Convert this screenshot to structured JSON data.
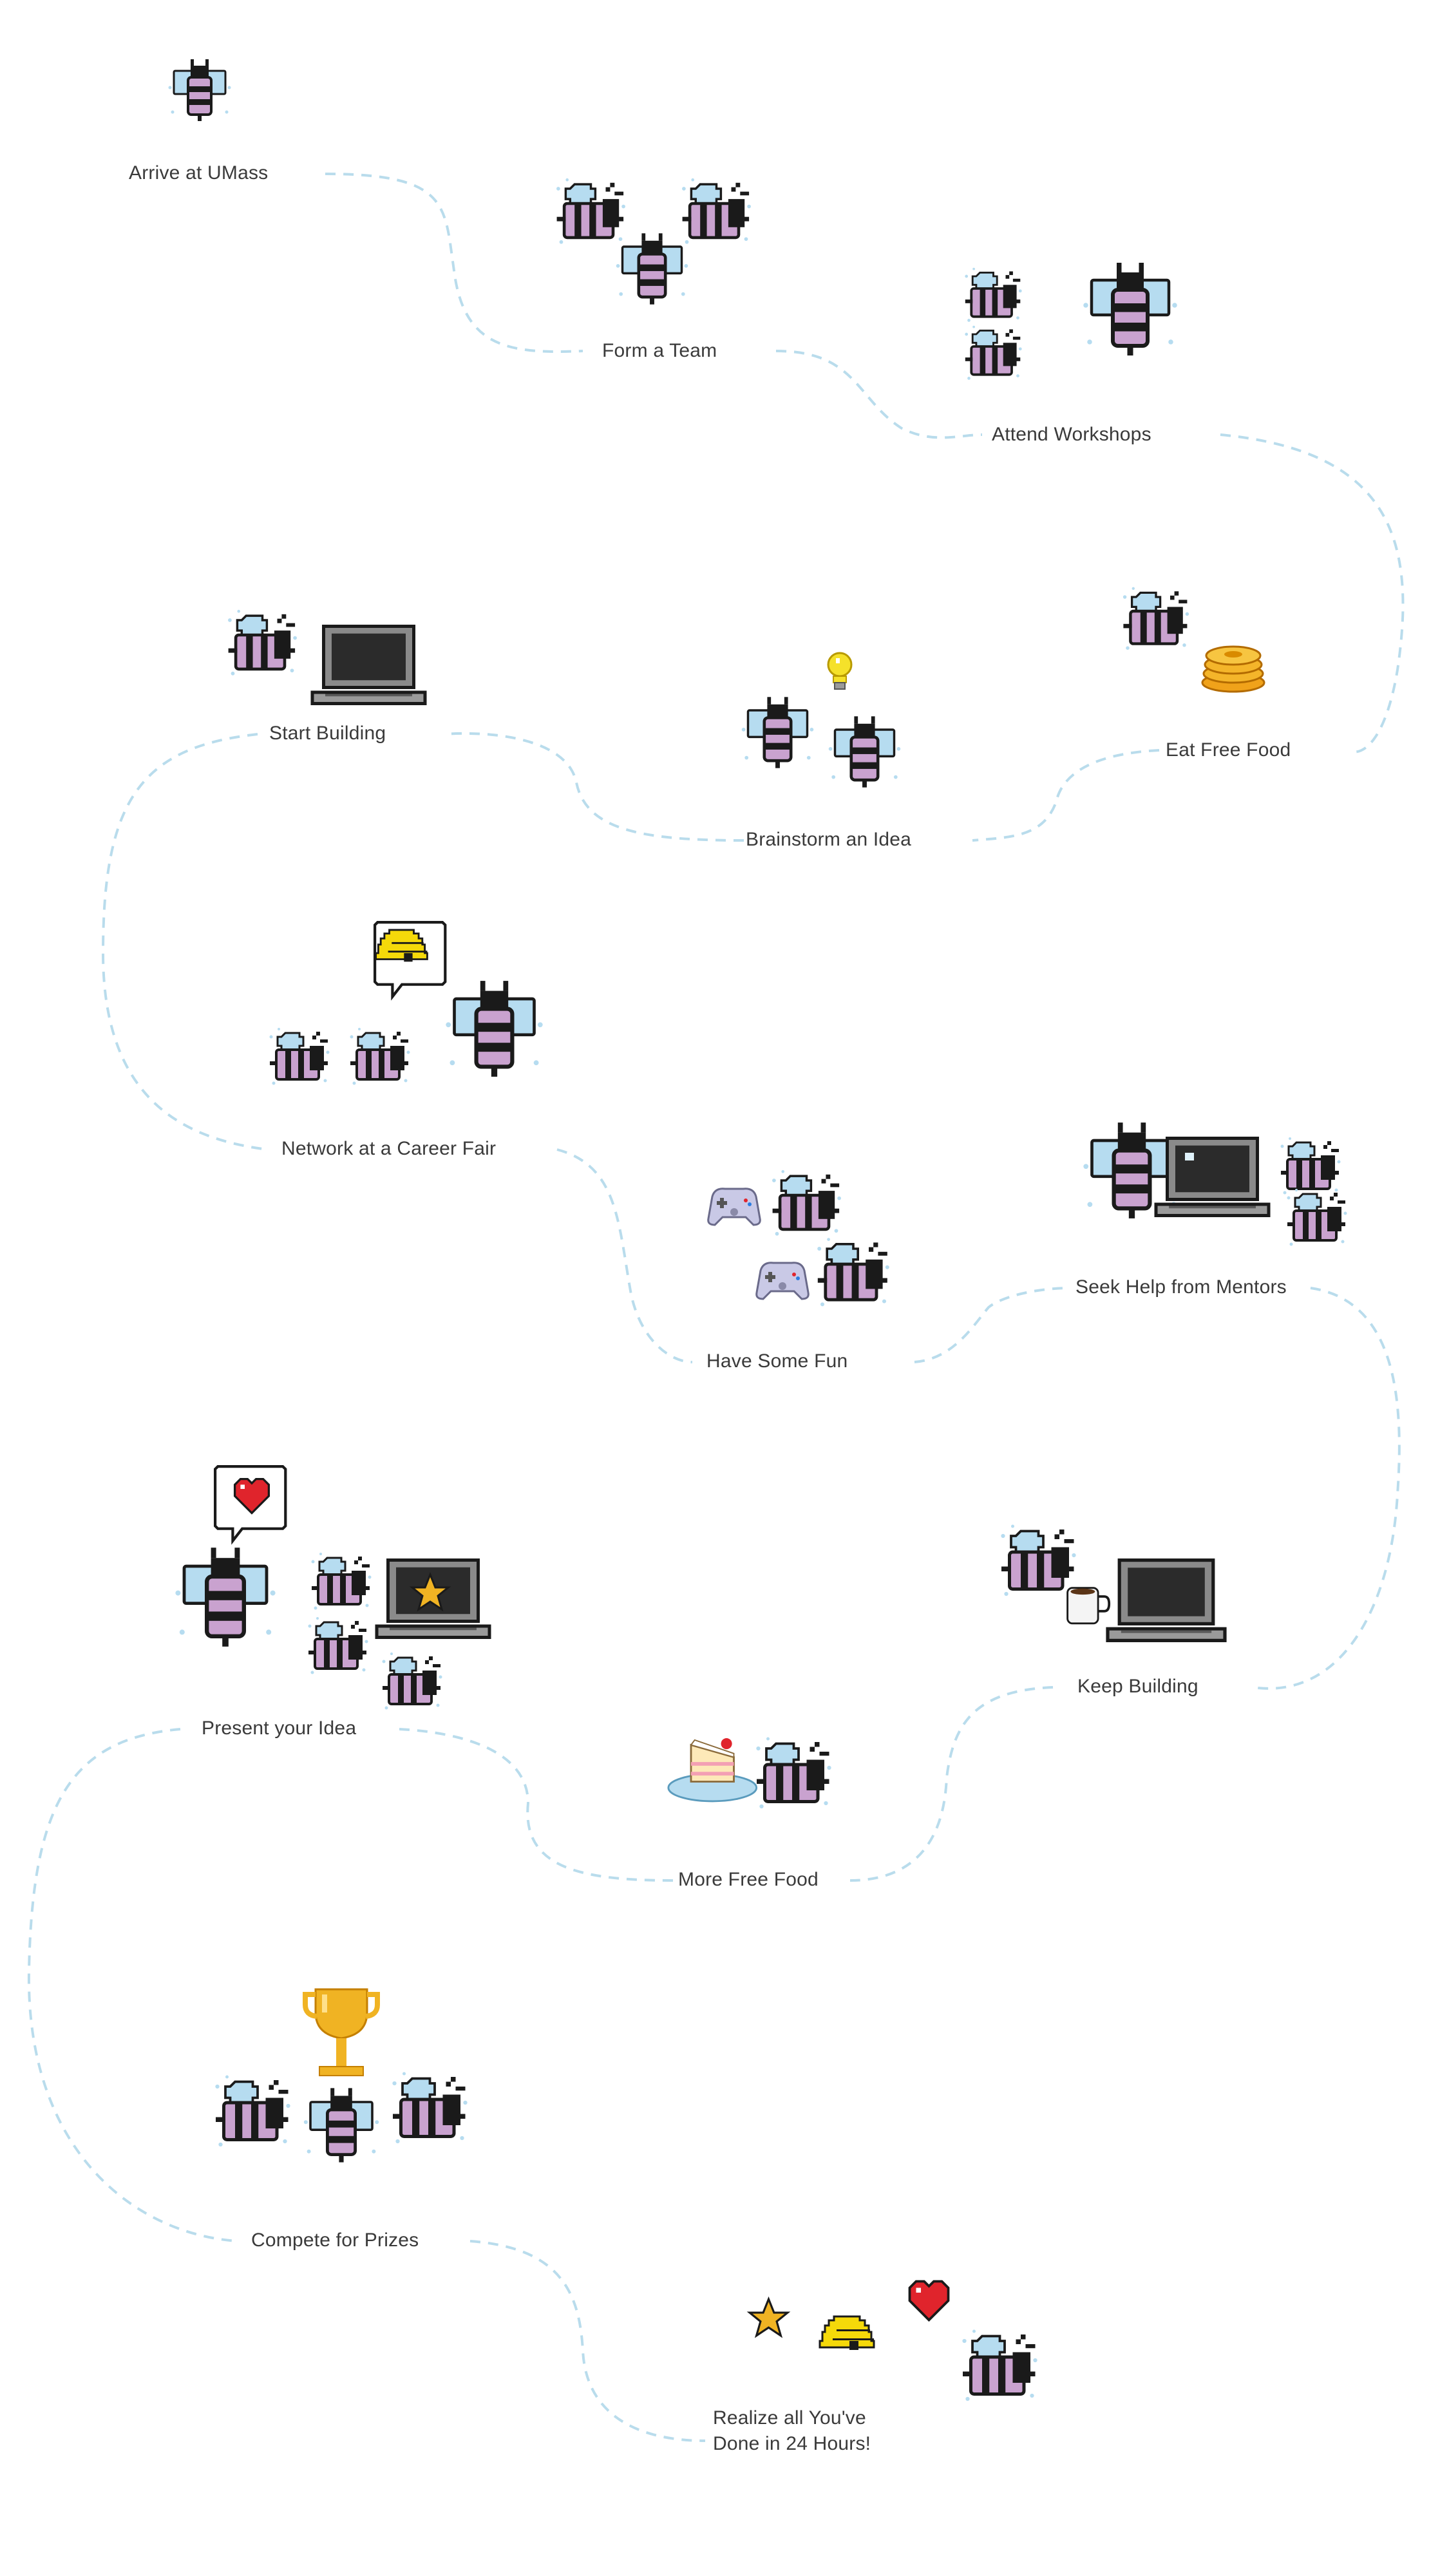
{
  "journey": {
    "steps": [
      {
        "id": "arrive",
        "label": "Arrive at UMass"
      },
      {
        "id": "team",
        "label": "Form a Team"
      },
      {
        "id": "workshops",
        "label": "Attend Workshops"
      },
      {
        "id": "food",
        "label": "Eat Free Food"
      },
      {
        "id": "brainstorm",
        "label": "Brainstorm an Idea"
      },
      {
        "id": "build",
        "label": "Start Building"
      },
      {
        "id": "career",
        "label": "Network at a Career Fair"
      },
      {
        "id": "fun",
        "label": "Have Some Fun"
      },
      {
        "id": "mentors",
        "label": "Seek Help from Mentors"
      },
      {
        "id": "keepbuild",
        "label": "Keep Building"
      },
      {
        "id": "morefood",
        "label": "More Free Food"
      },
      {
        "id": "present",
        "label": "Present your Idea"
      },
      {
        "id": "compete",
        "label": "Compete for Prizes"
      },
      {
        "id": "realize",
        "label_lines": [
          "Realize all You've",
          "Done in 24 Hours!"
        ]
      }
    ]
  },
  "icons": {
    "bee": "bee-icon",
    "laptop": "laptop-icon",
    "lightbulb": "lightbulb-icon",
    "pancakes": "pancakes-icon",
    "beehive": "beehive-icon",
    "speech_bubble": "speech-bubble-icon",
    "game_controller": "game-controller-icon",
    "heart": "heart-icon",
    "star": "star-icon",
    "coffee": "coffee-mug-icon",
    "cake": "cake-icon",
    "trophy": "trophy-icon"
  },
  "colors": {
    "path": "#b9dcec",
    "bee_body": "#c9a2cf",
    "bee_stripe": "#1a1a1a",
    "bee_wing": "#b6dcf0",
    "label": "#3a3a3a",
    "gold": "#f0b323",
    "heart": "#e0242c"
  }
}
